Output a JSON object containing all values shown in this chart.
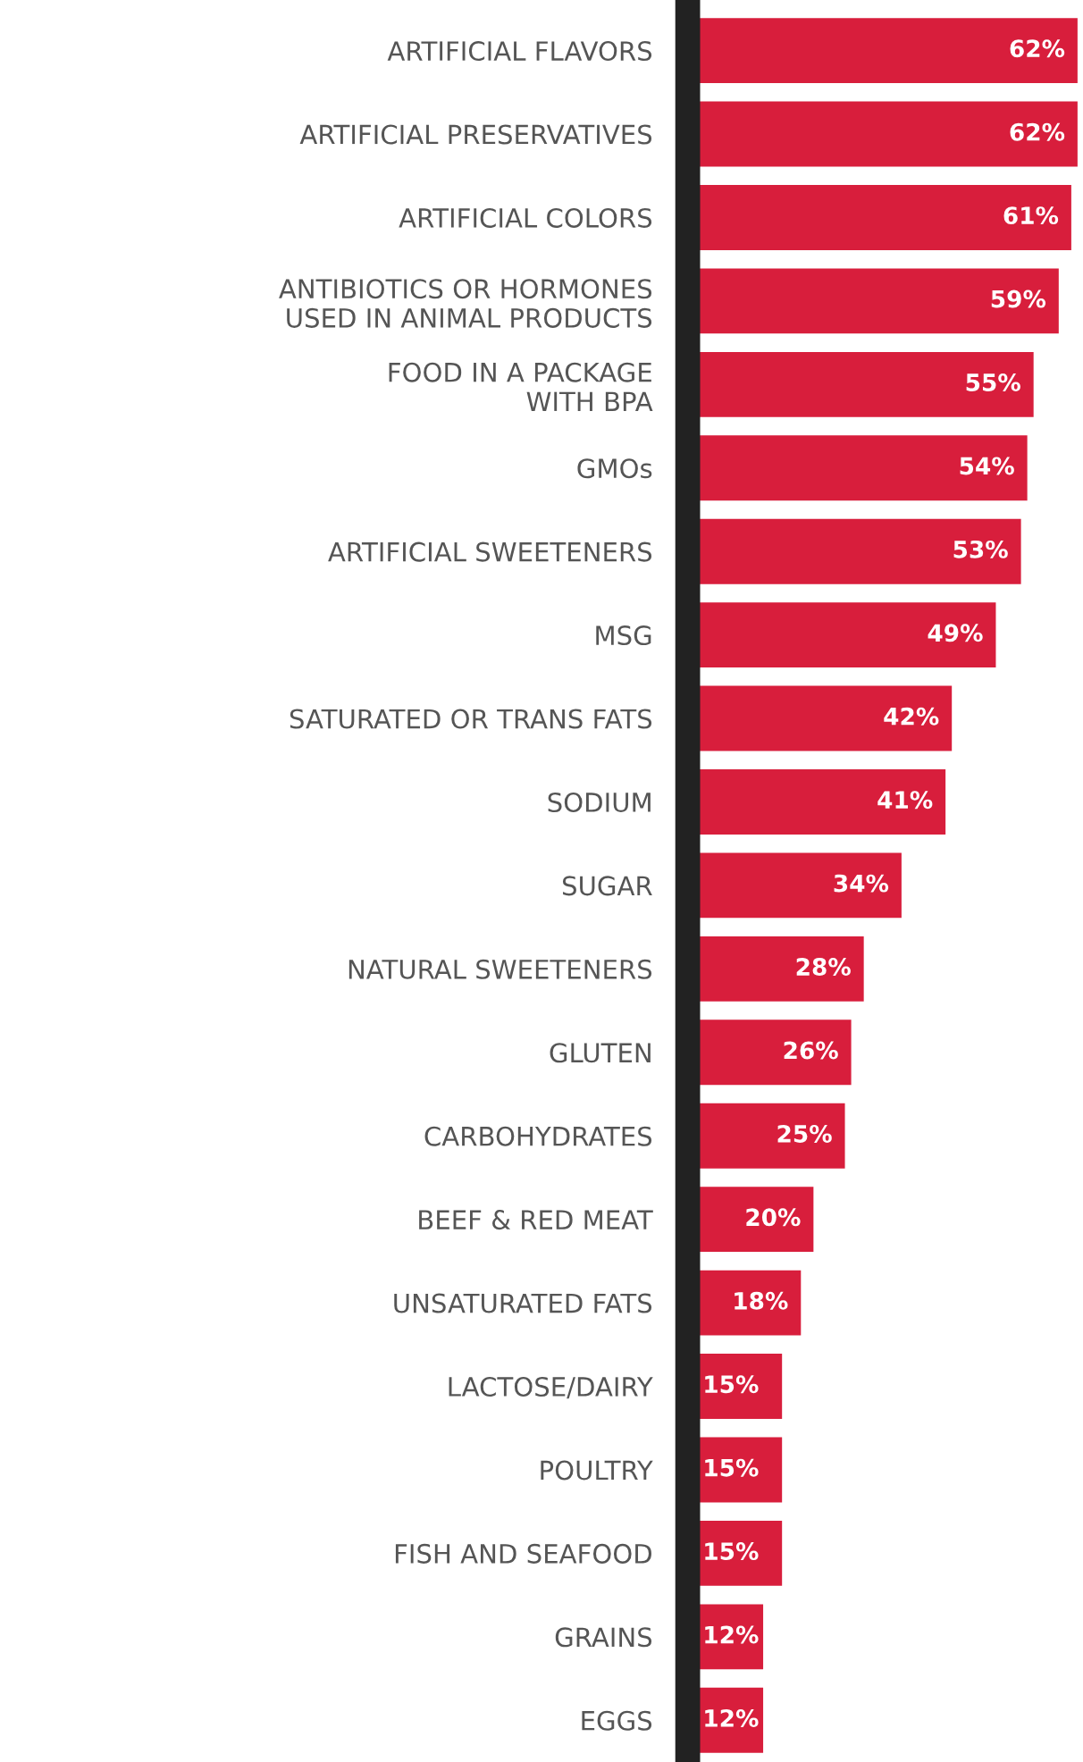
{
  "chart_data": {
    "type": "bar",
    "orientation": "horizontal",
    "categories": [
      "ARTIFICIAL FLAVORS",
      "ARTIFICIAL PRESERVATIVES",
      "ARTIFICIAL COLORS",
      "ANTIBIOTICS OR HORMONES\nUSED IN ANIMAL PRODUCTS",
      "FOOD IN A PACKAGE\nWITH BPA",
      "GMOs",
      "ARTIFICIAL SWEETENERS",
      "MSG",
      "SATURATED OR TRANS FATS",
      "SODIUM",
      "SUGAR",
      "NATURAL SWEETENERS",
      "GLUTEN",
      "CARBOHYDRATES",
      "BEEF & RED MEAT",
      "UNSATURATED FATS",
      "LACTOSE/DAIRY",
      "POULTRY",
      "FISH AND SEAFOOD",
      "GRAINS",
      "EGGS"
    ],
    "values": [
      62,
      62,
      61,
      59,
      55,
      54,
      53,
      49,
      42,
      41,
      34,
      28,
      26,
      25,
      20,
      18,
      15,
      15,
      15,
      12,
      12
    ],
    "value_labels": [
      "62%",
      "62%",
      "61%",
      "59%",
      "55%",
      "54%",
      "53%",
      "49%",
      "42%",
      "41%",
      "34%",
      "28%",
      "26%",
      "25%",
      "20%",
      "18%",
      "15%",
      "15%",
      "15%",
      "12%",
      "12%"
    ],
    "color": "#d81e3c",
    "xlim": [
      0,
      62
    ],
    "grid": false,
    "legend": false,
    "tick_labels": "y"
  }
}
